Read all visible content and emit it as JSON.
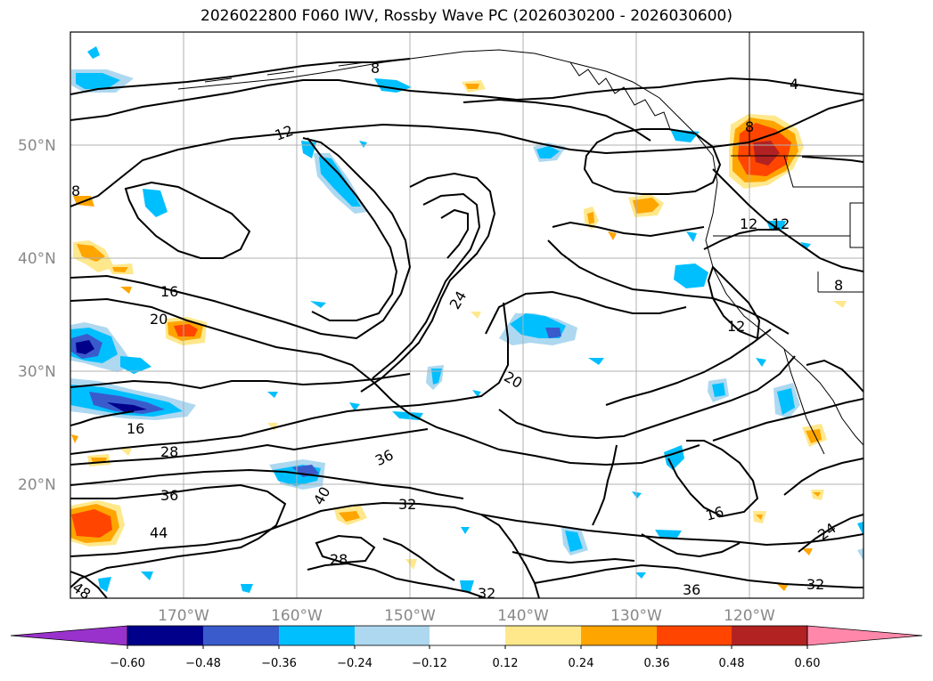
{
  "title": "2026022800 F060 IWV, Rossby Wave PC (2026030200 - 2026030600)",
  "axes": {
    "lat_labels": [
      "50°N",
      "40°N",
      "30°N",
      "20°N"
    ],
    "lon_labels": [
      "170°W",
      "160°W",
      "150°W",
      "140°W",
      "130°W",
      "120°W"
    ]
  },
  "colorbar": {
    "tick_labels": [
      "-0.60",
      "-0.48",
      "-0.36",
      "-0.24",
      "-0.12",
      "0.12",
      "0.24",
      "0.36",
      "0.48",
      "0.60"
    ],
    "colors": [
      "#9932cc",
      "#00008b",
      "#3a5bcc",
      "#00bfff",
      "#add8f0",
      "#ffffff",
      "#ffe88c",
      "#ffa500",
      "#ff4500",
      "#b22222",
      "#ff88aa"
    ],
    "extend": "both"
  },
  "contour_labels": [
    "12",
    "8",
    "8",
    "4",
    "16",
    "20",
    "24",
    "20",
    "16",
    "28",
    "36",
    "36",
    "44",
    "40",
    "32",
    "28",
    "32",
    "48",
    "16",
    "24",
    "36",
    "32",
    "12",
    "12",
    "12",
    "8",
    "8"
  ],
  "colors": {
    "positive_fill": "#ffa500",
    "positive_strong": "#ff4500",
    "negative_fill": "#00bfff",
    "negative_light": "#add8f0",
    "negative_strong": "#3a5bcc",
    "grid": "#b0b0b0",
    "contour": "#000000"
  }
}
